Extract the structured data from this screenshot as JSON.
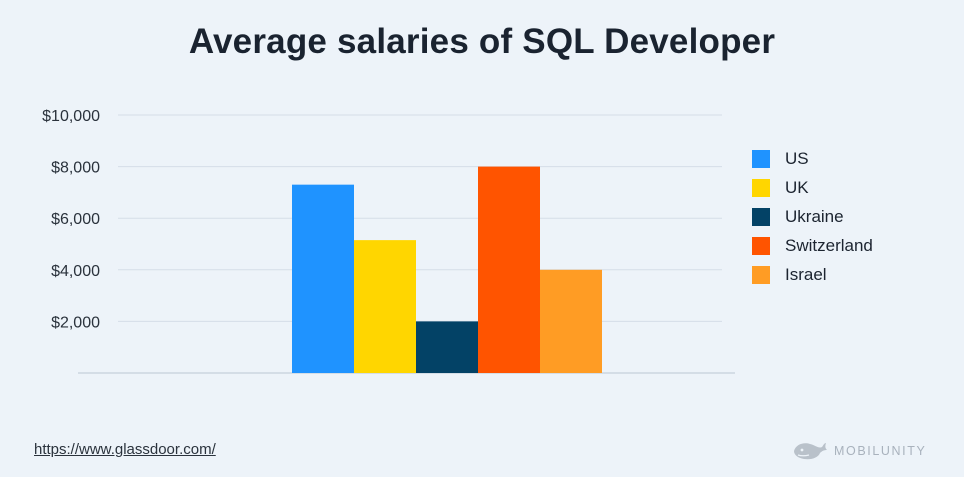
{
  "title": "Average salaries of SQL Developer",
  "source": {
    "text": "https://www.glassdoor.com/"
  },
  "brand": {
    "text": "MOBILUNITY",
    "icon": "whale-logo-icon"
  },
  "chart_data": {
    "type": "bar",
    "title": "Average salaries of SQL Developer",
    "xlabel": "",
    "ylabel": "",
    "ylim": [
      0,
      10000
    ],
    "yticks": [
      2000,
      4000,
      6000,
      8000,
      10000
    ],
    "ytick_labels": [
      "$2,000",
      "$4,000",
      "$6,000",
      "$8,000",
      "$10,000"
    ],
    "grid": true,
    "legend_position": "right",
    "series": [
      {
        "name": "US",
        "value": 7300,
        "color": "#1f93ff"
      },
      {
        "name": "UK",
        "value": 5150,
        "color": "#ffd600"
      },
      {
        "name": "Ukraine",
        "value": 2000,
        "color": "#034266"
      },
      {
        "name": "Switzerland",
        "value": 8000,
        "color": "#ff5400"
      },
      {
        "name": "Israel",
        "value": 4000,
        "color": "#ff9c24"
      }
    ]
  }
}
